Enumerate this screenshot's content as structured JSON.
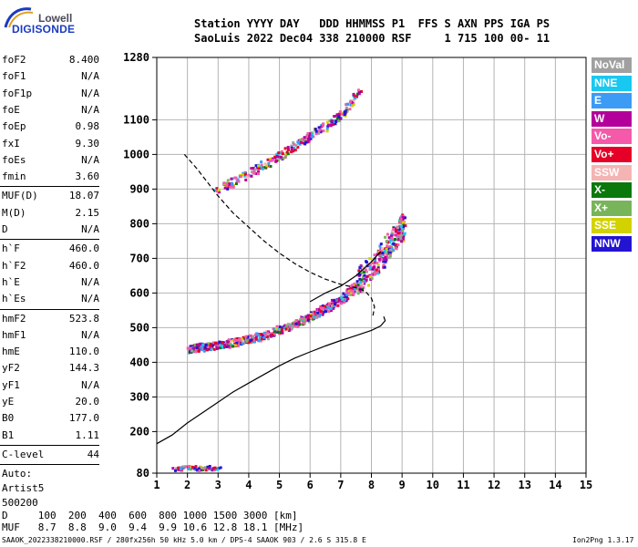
{
  "logo": {
    "top": "Lowell",
    "bottom": "DIGISONDE"
  },
  "header": {
    "line1": "Station YYYY DAY   DDD HHMMSS P1  FFS S AXN PPS IGA PS",
    "line2": "SaoLuis 2022 Dec04 338 210000 RSF     1 715 100 00- 11"
  },
  "params": {
    "group1": [
      {
        "name": "foF2",
        "value": "8.400"
      },
      {
        "name": "foF1",
        "value": "N/A"
      },
      {
        "name": "foF1p",
        "value": "N/A"
      },
      {
        "name": "foE",
        "value": "N/A"
      },
      {
        "name": "foEp",
        "value": "0.98"
      },
      {
        "name": "fxI",
        "value": "9.30"
      },
      {
        "name": "foEs",
        "value": "N/A"
      },
      {
        "name": "fmin",
        "value": "3.60"
      }
    ],
    "group2": [
      {
        "name": "MUF(D)",
        "value": "18.07"
      },
      {
        "name": "M(D)",
        "value": "2.15"
      },
      {
        "name": "D",
        "value": "N/A"
      }
    ],
    "group3": [
      {
        "name": "h`F",
        "value": "460.0"
      },
      {
        "name": "h`F2",
        "value": "460.0"
      },
      {
        "name": "h`E",
        "value": "N/A"
      },
      {
        "name": "h`Es",
        "value": "N/A"
      }
    ],
    "group4": [
      {
        "name": "hmF2",
        "value": "523.8"
      },
      {
        "name": "hmF1",
        "value": "N/A"
      },
      {
        "name": "hmE",
        "value": "110.0"
      },
      {
        "name": "yF2",
        "value": "144.3"
      },
      {
        "name": "yF1",
        "value": "N/A"
      },
      {
        "name": "yE",
        "value": "20.0"
      },
      {
        "name": "B0",
        "value": "177.0"
      },
      {
        "name": "B1",
        "value": "1.11"
      }
    ],
    "clevel": {
      "name": "C-level",
      "value": "44"
    },
    "auto": [
      "Auto:",
      "Artist5",
      "500200"
    ]
  },
  "legend": [
    {
      "label": "NoVal",
      "color": "#a0a0a0"
    },
    {
      "label": "NNE",
      "color": "#19c8f0"
    },
    {
      "label": "E",
      "color": "#3c9bf5"
    },
    {
      "label": "W",
      "color": "#b4009b"
    },
    {
      "label": "Vo-",
      "color": "#f55aaa"
    },
    {
      "label": "Vo+",
      "color": "#e60028"
    },
    {
      "label": "SSW",
      "color": "#f5b4b4"
    },
    {
      "label": "X-",
      "color": "#0a780a"
    },
    {
      "label": "X+",
      "color": "#78b45a"
    },
    {
      "label": "SSE",
      "color": "#d2d200"
    },
    {
      "label": "NNW",
      "color": "#2314d2"
    }
  ],
  "footer": {
    "d_row": "D     100  200  400  600  800 1000 1500 3000 [km]",
    "muf_row": "MUF   8.7  8.8  9.0  9.4  9.9 10.6 12.8 18.1 [MHz]",
    "file_info": "SAAOK_2022338210000.RSF / 280fx256h 50 kHz 5.0 km / DPS-4 SAAOK 903 / 2.6 S 315.8 E",
    "version": "Ion2Png 1.3.17"
  },
  "chart_data": {
    "type": "scatter",
    "title": "",
    "xlabel": "",
    "ylabel": "",
    "xlim": [
      1,
      15
    ],
    "ylim": [
      80,
      1280
    ],
    "x_ticks": [
      1,
      2,
      3,
      4,
      5,
      6,
      7,
      8,
      9,
      10,
      11,
      12,
      13,
      14,
      15
    ],
    "y_ticks": [
      80,
      200,
      300,
      400,
      500,
      600,
      700,
      800,
      900,
      1000,
      1100,
      1280
    ],
    "grid": true,
    "series": [
      {
        "type": "dashed-line",
        "points": [
          [
            1.9,
            1000
          ],
          [
            2.3,
            960
          ],
          [
            3.0,
            880
          ],
          [
            3.5,
            830
          ],
          [
            4.0,
            790
          ],
          [
            4.5,
            750
          ],
          [
            5.0,
            715
          ],
          [
            5.5,
            685
          ],
          [
            6.0,
            660
          ],
          [
            6.5,
            640
          ],
          [
            7.0,
            625
          ],
          [
            7.5,
            615
          ],
          [
            7.8,
            605
          ],
          [
            8.0,
            585
          ],
          [
            8.1,
            560
          ],
          [
            8.05,
            535
          ]
        ]
      },
      {
        "type": "solid-line",
        "points": [
          [
            1.0,
            165
          ],
          [
            1.5,
            190
          ],
          [
            2.0,
            225
          ],
          [
            2.5,
            255
          ],
          [
            3.0,
            285
          ],
          [
            3.5,
            315
          ],
          [
            4.0,
            340
          ],
          [
            4.5,
            365
          ],
          [
            5.0,
            390
          ],
          [
            5.5,
            412
          ],
          [
            6.0,
            430
          ],
          [
            6.5,
            447
          ],
          [
            7.0,
            463
          ],
          [
            7.5,
            477
          ],
          [
            8.0,
            492
          ],
          [
            8.3,
            505
          ],
          [
            8.45,
            520
          ],
          [
            8.4,
            532
          ]
        ]
      },
      {
        "type": "solid-line",
        "points": [
          [
            6.0,
            575
          ],
          [
            6.5,
            600
          ],
          [
            7.0,
            620
          ],
          [
            7.5,
            650
          ],
          [
            8.0,
            690
          ],
          [
            8.3,
            720
          ]
        ]
      }
    ],
    "echo_clusters": [
      {
        "name": "lower-F",
        "points": [
          [
            2.0,
            440
          ],
          [
            2.5,
            448
          ],
          [
            3.0,
            452
          ],
          [
            3.5,
            460
          ],
          [
            4.0,
            470
          ],
          [
            4.5,
            482
          ],
          [
            5.0,
            498
          ],
          [
            5.5,
            515
          ],
          [
            6.0,
            535
          ],
          [
            6.5,
            560
          ],
          [
            7.0,
            585
          ],
          [
            7.3,
            610
          ],
          [
            7.6,
            640
          ],
          [
            8.0,
            680
          ],
          [
            8.3,
            710
          ],
          [
            8.6,
            750
          ],
          [
            8.9,
            780
          ],
          [
            9.0,
            800
          ]
        ]
      },
      {
        "name": "upper-F",
        "points": [
          [
            2.9,
            900
          ],
          [
            3.5,
            925
          ],
          [
            4.0,
            950
          ],
          [
            4.5,
            975
          ],
          [
            5.0,
            1000
          ],
          [
            5.5,
            1030
          ],
          [
            6.0,
            1060
          ],
          [
            6.5,
            1085
          ],
          [
            7.0,
            1120
          ],
          [
            7.3,
            1150
          ],
          [
            7.6,
            1190
          ]
        ]
      },
      {
        "name": "low-band",
        "points": [
          [
            1.6,
            95
          ],
          [
            2.0,
            100
          ],
          [
            2.5,
            95
          ],
          [
            2.9,
            100
          ]
        ]
      }
    ]
  }
}
